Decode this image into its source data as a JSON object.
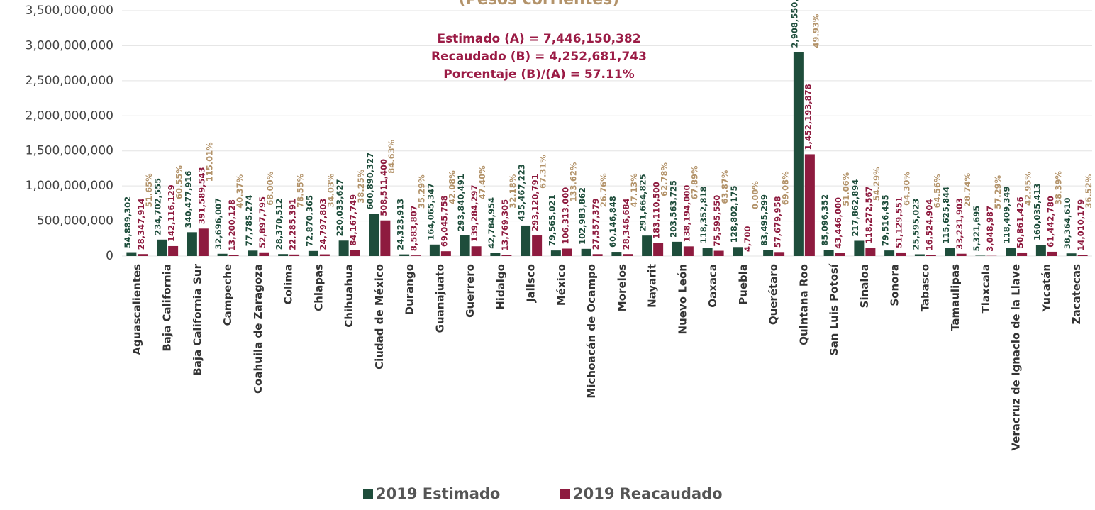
{
  "chart_data": {
    "type": "bar",
    "title": "(Pesos corrientes)",
    "annotations": [
      "Estimado (A) = 7,446,150,382",
      "Recaudado (B) = 4,252,681,743",
      "Porcentaje (B)/(A) = 57.11%"
    ],
    "categories": [
      "Aguascalientes",
      "Baja California",
      "Baja California Sur",
      "Campeche",
      "Coahuila de Zaragoza",
      "Colima",
      "Chiapas",
      "Chihuahua",
      "Ciudad de México",
      "Durango",
      "Guanajuato",
      "Guerrero",
      "Hidalgo",
      "Jalisco",
      "México",
      "Michoacán de Ocampo",
      "Morelos",
      "Nayarit",
      "Nuevo León",
      "Oaxaca",
      "Puebla",
      "Querétaro",
      "Quintana Roo",
      "San Luis Potosí",
      "Sinaloa",
      "Sonora",
      "Tabasco",
      "Tamaulipas",
      "Tlaxcala",
      "Veracruz de Ignacio de la Llave",
      "Yucatán",
      "Zacatecas"
    ],
    "series": [
      {
        "name": "2019 Estimado",
        "color": "#1e4d3b",
        "values": [
          54889302,
          234702555,
          340477916,
          32696007,
          77785274,
          28370512,
          72870365,
          220033627,
          600890327,
          24323913,
          164065347,
          293840491,
          42784954,
          435467223,
          79565021,
          102983862,
          60146848,
          291664825,
          203563725,
          118352818,
          128802175,
          83495299,
          2908550381,
          85096352,
          217862894,
          79516435,
          25595023,
          115625844,
          5321695,
          118409349,
          160035413,
          38364610
        ],
        "value_labels": [
          "54,889,302",
          "234,702,555",
          "340,477,916",
          "32,696,007",
          "77,785,274",
          "28,370,512",
          "72,870,365",
          "220,033,627",
          "600,890,327",
          "24,323,913",
          "164,065,347",
          "293,840,491",
          "42,784,954",
          "435,467,223",
          "79,565,021",
          "102,983,862",
          "60,146,848",
          "291,664,825",
          "203,563,725",
          "118,352,818",
          "128,802,175",
          "83,495,299",
          "2,908,550,381",
          "85,096,352",
          "217,862,894",
          "79,516,435",
          "25,595,023",
          "115,625,844",
          "5,321,695",
          "118,409,349",
          "160,035,413",
          "38,364,610"
        ]
      },
      {
        "name": "2019 Reacaudado",
        "color": "#8e1b3f",
        "values": [
          28347914,
          142116129,
          391589543,
          13200128,
          52897795,
          22285391,
          24797803,
          84167749,
          508511400,
          8583807,
          69045758,
          139284297,
          13769305,
          293120791,
          106313000,
          27557379,
          28346684,
          183110500,
          138194000,
          75595550,
          4700,
          57679958,
          1452193878,
          43446000,
          118272567,
          51129551,
          16524904,
          33231903,
          3048987,
          50861426,
          61442780,
          14010179
        ],
        "value_labels": [
          "28,347,914",
          "142,116,129",
          "391,589,543",
          "13,200,128",
          "52,897,795",
          "22,285,391",
          "24,797,803",
          "84,167,749",
          "508,511,400",
          "8,583,807",
          "69,045,758",
          "139,284,297",
          "13,769,305",
          "293,120,791",
          "106,313,000",
          "27,557,379",
          "28,346,684",
          "183,110,500",
          "138,194,000",
          "75,595,550",
          "4,700",
          "57,679,958",
          "1,452,193,878",
          "43,446,000",
          "118,272,567",
          "51,129,551",
          "16,524,904",
          "33,231,903",
          "3,048,987",
          "50,861,426",
          "61,442,780",
          "14,010,179"
        ]
      }
    ],
    "percentages": [
      51.65,
      60.55,
      115.01,
      40.37,
      68.0,
      78.55,
      34.03,
      38.25,
      84.63,
      35.29,
      42.08,
      47.4,
      32.18,
      67.31,
      133.62,
      26.76,
      47.13,
      62.78,
      67.89,
      63.87,
      0.0,
      69.08,
      49.93,
      51.06,
      54.29,
      64.3,
      64.56,
      28.74,
      57.29,
      42.95,
      38.39,
      36.52
    ],
    "percentage_labels": [
      "51.65%",
      "60.55%",
      "115.01%",
      "40.37%",
      "68.00%",
      "78.55%",
      "34.03%",
      "38.25%",
      "84.63%",
      "35.29%",
      "42.08%",
      "47.40%",
      "32.18%",
      "67.31%",
      "133.62%",
      "26.76%",
      "47.13%",
      "62.78%",
      "67.89%",
      "63.87%",
      "0.00%",
      "69.08%",
      "49.93%",
      "51.06%",
      "54.29%",
      "64.30%",
      "64.56%",
      "28.74%",
      "57.29%",
      "42.95%",
      "38.39%",
      "36.52%"
    ],
    "percentage_color": "#b3936a",
    "ylim": [
      0,
      3500000000
    ],
    "yticks": [
      {
        "value": 0,
        "label": "0"
      },
      {
        "value": 500000000,
        "label": "500,000,000"
      },
      {
        "value": 1000000000,
        "label": "1,000,000,000"
      },
      {
        "value": 1500000000,
        "label": "1,500,000,000"
      },
      {
        "value": 2000000000,
        "label": "2,000,000,000"
      },
      {
        "value": 2500000000,
        "label": "2,500,000,000"
      },
      {
        "value": 3000000000,
        "label": "3,000,000,000"
      },
      {
        "value": 3500000000,
        "label": "3,500,000,000"
      }
    ],
    "grid": true
  }
}
